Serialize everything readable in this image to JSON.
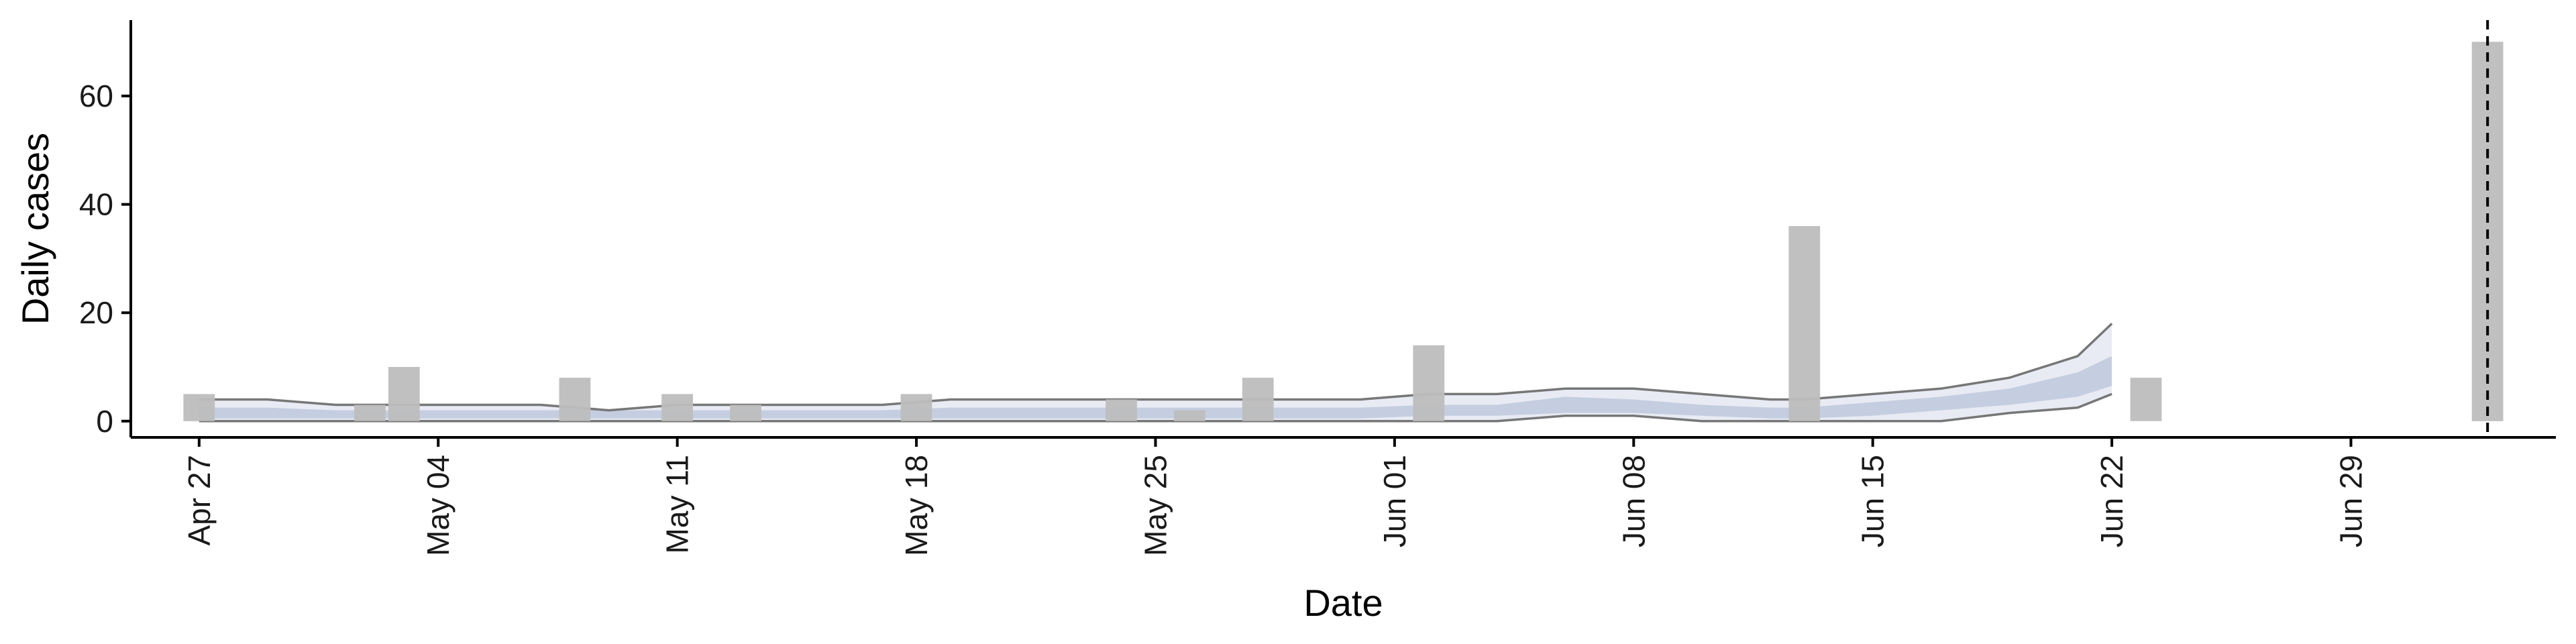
{
  "chart_data": {
    "type": "bar",
    "xlabel": "Date",
    "ylabel": "Daily cases",
    "title": "",
    "grid": false,
    "legend": "none",
    "xlim": [
      "2020-04-25",
      "2020-07-05"
    ],
    "ylim": [
      -3,
      74
    ],
    "x_ticks": [
      {
        "date": "2020-04-27",
        "label": "Apr 27"
      },
      {
        "date": "2020-05-04",
        "label": "May 04"
      },
      {
        "date": "2020-05-11",
        "label": "May 11"
      },
      {
        "date": "2020-05-18",
        "label": "May 18"
      },
      {
        "date": "2020-05-25",
        "label": "May 25"
      },
      {
        "date": "2020-06-01",
        "label": "Jun 01"
      },
      {
        "date": "2020-06-08",
        "label": "Jun 08"
      },
      {
        "date": "2020-06-15",
        "label": "Jun 15"
      },
      {
        "date": "2020-06-22",
        "label": "Jun 22"
      },
      {
        "date": "2020-06-29",
        "label": "Jun 29"
      }
    ],
    "y_ticks": [
      0,
      20,
      40,
      60
    ],
    "bars": [
      {
        "date": "2020-04-27",
        "value": 5
      },
      {
        "date": "2020-05-02",
        "value": 3
      },
      {
        "date": "2020-05-03",
        "value": 10
      },
      {
        "date": "2020-05-08",
        "value": 8
      },
      {
        "date": "2020-05-11",
        "value": 5
      },
      {
        "date": "2020-05-13",
        "value": 3
      },
      {
        "date": "2020-05-18",
        "value": 5
      },
      {
        "date": "2020-05-24",
        "value": 4
      },
      {
        "date": "2020-05-26",
        "value": 2
      },
      {
        "date": "2020-05-28",
        "value": 8
      },
      {
        "date": "2020-06-02",
        "value": 14
      },
      {
        "date": "2020-06-13",
        "value": 36
      },
      {
        "date": "2020-06-23",
        "value": 8
      },
      {
        "date": "2020-07-03",
        "value": 70
      }
    ],
    "bands": {
      "dates": [
        "2020-04-27",
        "2020-04-29",
        "2020-05-01",
        "2020-05-03",
        "2020-05-05",
        "2020-05-07",
        "2020-05-09",
        "2020-05-11",
        "2020-05-13",
        "2020-05-15",
        "2020-05-17",
        "2020-05-19",
        "2020-05-21",
        "2020-05-23",
        "2020-05-25",
        "2020-05-27",
        "2020-05-29",
        "2020-05-31",
        "2020-06-02",
        "2020-06-04",
        "2020-06-06",
        "2020-06-08",
        "2020-06-10",
        "2020-06-12",
        "2020-06-13",
        "2020-06-15",
        "2020-06-17",
        "2020-06-19",
        "2020-06-21",
        "2020-06-22"
      ],
      "outer_lower": [
        0,
        0,
        0,
        0,
        0,
        0,
        0,
        0,
        0,
        0,
        0,
        0,
        0,
        0,
        0,
        0,
        0,
        0,
        0,
        0,
        1,
        1,
        0,
        0,
        0,
        0,
        0,
        1.5,
        2.5,
        5
      ],
      "outer_upper": [
        4,
        4,
        3,
        3,
        3,
        3,
        2,
        3,
        3,
        3,
        3,
        4,
        4,
        4,
        4,
        4,
        4,
        4,
        5,
        5,
        6,
        6,
        5,
        4,
        4,
        5,
        6,
        8,
        12,
        18
      ],
      "inner_lower": [
        0.5,
        0.5,
        0.5,
        0.5,
        0.5,
        0.5,
        0.5,
        0.5,
        0.5,
        0.5,
        0.5,
        0.5,
        0.5,
        0.5,
        0.5,
        0.5,
        0.5,
        0.5,
        1,
        1,
        1.5,
        1.5,
        1,
        0.5,
        0.5,
        1,
        2,
        3,
        4.5,
        6.5
      ],
      "inner_upper": [
        2.5,
        2.5,
        2,
        2,
        2,
        2,
        2,
        2,
        2,
        2,
        2,
        2.5,
        2.5,
        2.5,
        2.5,
        2.5,
        2.5,
        2.5,
        3,
        3,
        4.5,
        4,
        3,
        2.5,
        2.5,
        3.5,
        4.5,
        6,
        9,
        12
      ]
    },
    "reference_line": {
      "date": "2020-07-03",
      "style": "dashed"
    },
    "colors": {
      "bars": "#bdbdbd",
      "outer_band": "#e8ebf3",
      "inner_band": "#c5cde0",
      "band_edges": "#777777",
      "axis": "#000000",
      "reference_line": "#000000"
    }
  }
}
